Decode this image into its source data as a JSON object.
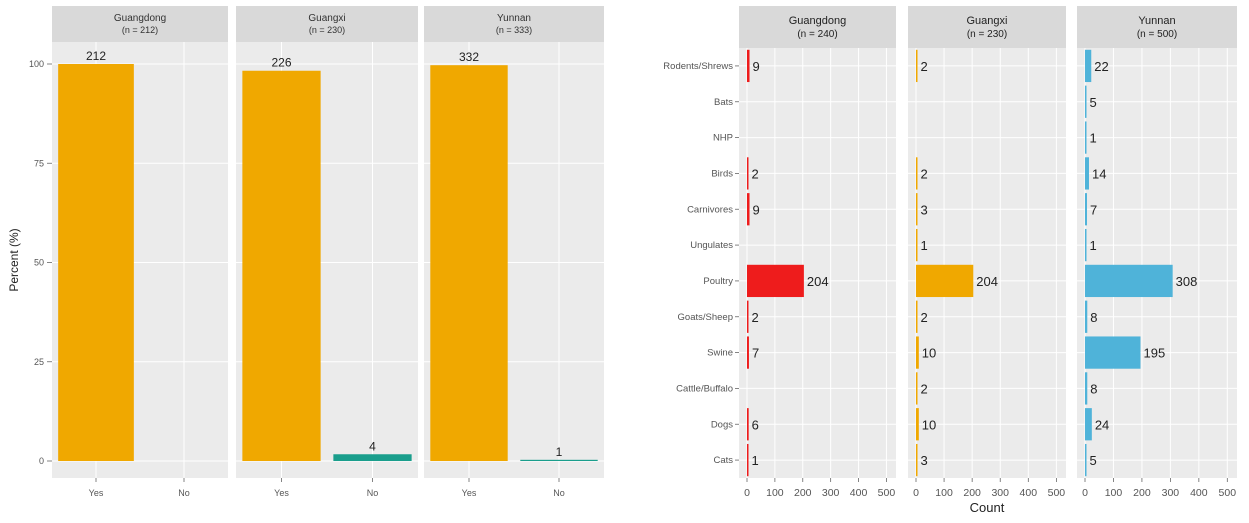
{
  "chart_data": [
    {
      "type": "bar",
      "ylabel": "Percent (%)",
      "ylim": [
        0,
        100
      ],
      "y_ticks": [
        0,
        25,
        50,
        75,
        100
      ],
      "categories": [
        "Yes",
        "No"
      ],
      "colors": {
        "Yes": "#F0A800",
        "No": "#1A9E8C"
      },
      "panels": [
        {
          "title": "Guangdong",
          "subtitle": "(n = 212)",
          "values": [
            100,
            0
          ],
          "labels": [
            "212",
            ""
          ]
        },
        {
          "title": "Guangxi",
          "subtitle": "(n = 230)",
          "values": [
            98.3,
            1.7
          ],
          "labels": [
            "226",
            "4"
          ]
        },
        {
          "title": "Yunnan",
          "subtitle": "(n = 333)",
          "values": [
            99.7,
            0.3
          ],
          "labels": [
            "332",
            "1"
          ]
        }
      ]
    },
    {
      "type": "bar",
      "orientation": "horizontal",
      "xlabel": "Count",
      "xlim": [
        0,
        520
      ],
      "x_ticks": [
        0,
        100,
        200,
        300,
        400,
        500
      ],
      "categories": [
        "Rodents/Shrews",
        "Bats",
        "NHP",
        "Birds",
        "Carnivores",
        "Ungulates",
        "Poultry",
        "Goats/Sheep",
        "Swine",
        "Cattle/Buffalo",
        "Dogs",
        "Cats"
      ],
      "panels": [
        {
          "title": "Guangdong",
          "subtitle": "(n = 240)",
          "color": "#EE1C1C",
          "values": [
            9,
            null,
            null,
            2,
            9,
            null,
            204,
            2,
            7,
            null,
            6,
            1
          ]
        },
        {
          "title": "Guangxi",
          "subtitle": "(n = 230)",
          "color": "#F0A800",
          "values": [
            2,
            null,
            null,
            2,
            3,
            1,
            204,
            2,
            10,
            2,
            10,
            3
          ]
        },
        {
          "title": "Yunnan",
          "subtitle": "(n = 500)",
          "color": "#4FB3D9",
          "values": [
            22,
            5,
            1,
            14,
            7,
            1,
            308,
            8,
            195,
            8,
            24,
            5
          ]
        }
      ]
    }
  ]
}
